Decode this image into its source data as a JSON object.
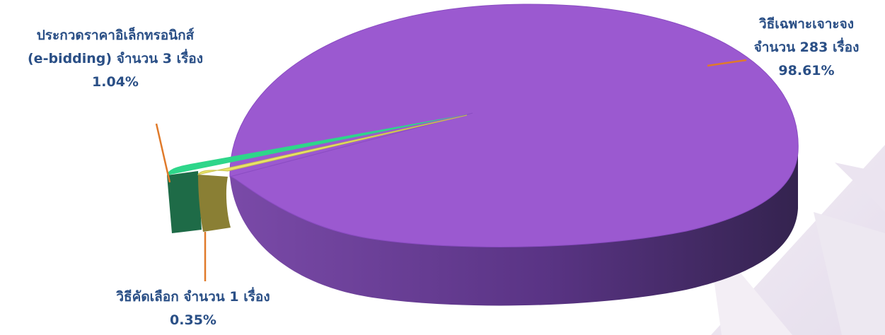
{
  "chart_data": {
    "type": "pie",
    "style": "3d-exploded",
    "slices": [
      {
        "lines": [
          "วิธีเฉพาะเจาะจง",
          "จำนวน 283 เรื่อง",
          "98.61%"
        ],
        "count": 283,
        "percent": 98.61,
        "color": "#9b59d0"
      },
      {
        "lines": [
          "ประกวดราคาอิเล็กทรอนิกส์",
          "(e-bidding) จำนวน 3 เรื่อง",
          "1.04%"
        ],
        "count": 3,
        "percent": 1.04,
        "color": "#2ed68a"
      },
      {
        "lines": [
          "วิธีคัดเลือก จำนวน 1 เรื่อง",
          "0.35%"
        ],
        "count": 1,
        "percent": 0.35,
        "color": "#e9e36a"
      }
    ],
    "leader_line_color": "#e07a2a",
    "legend": "none"
  }
}
